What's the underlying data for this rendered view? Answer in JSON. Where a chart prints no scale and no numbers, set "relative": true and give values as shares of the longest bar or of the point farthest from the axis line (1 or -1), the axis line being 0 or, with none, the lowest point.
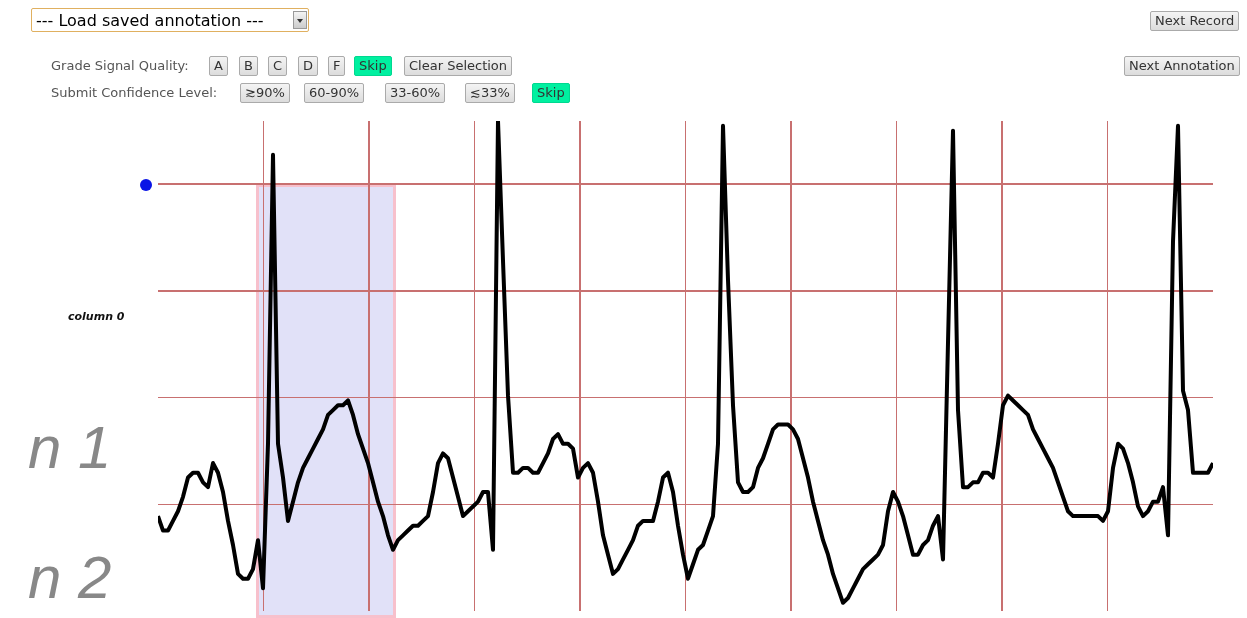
{
  "chart_data": {
    "type": "line",
    "relative": true,
    "grid": true,
    "categories": [
      null,
      null,
      null,
      null,
      null,
      null,
      null,
      null,
      null,
      null,
      null,
      null,
      null,
      null,
      null,
      null,
      null,
      null,
      null,
      null,
      null,
      null,
      null,
      null,
      null,
      null,
      null,
      null,
      null,
      null,
      null,
      null,
      null,
      null,
      null,
      null,
      null,
      null,
      null,
      null,
      null,
      null,
      null,
      null,
      null,
      null,
      null,
      null,
      null,
      null,
      null,
      null,
      null,
      null,
      null,
      null,
      null,
      null,
      null,
      null,
      null,
      null,
      null,
      null,
      null,
      null,
      null,
      null,
      null,
      null,
      null,
      null,
      null,
      null,
      null,
      null,
      null,
      null,
      null,
      null,
      null,
      null,
      null,
      null,
      null,
      null,
      null,
      null,
      null,
      null,
      null,
      null,
      null,
      null,
      null,
      null,
      null,
      null,
      null,
      null,
      null,
      null,
      null,
      null,
      null,
      null,
      null,
      null,
      null,
      null,
      null,
      null,
      null,
      null,
      null,
      null,
      null,
      null,
      null,
      null,
      null,
      null,
      null,
      null,
      null,
      null,
      null,
      null,
      null,
      null,
      null,
      null,
      null,
      null,
      null,
      null,
      null,
      null,
      null,
      null,
      null,
      null,
      null,
      null,
      null,
      null,
      null,
      null,
      null,
      null,
      null,
      null,
      null,
      null,
      null,
      null,
      null,
      null,
      null,
      null,
      null,
      null,
      null,
      null,
      null,
      null,
      null,
      null,
      null,
      null,
      null,
      null,
      null,
      null,
      null,
      null,
      null,
      null,
      null,
      null,
      null,
      null,
      null,
      null,
      null,
      null,
      null,
      null,
      null,
      null,
      null,
      null,
      null,
      null,
      null,
      null,
      null,
      null,
      null,
      null,
      null,
      null,
      null,
      null,
      null,
      null,
      null,
      null,
      null,
      null,
      null,
      null
    ],
    "series": [
      {
        "color": "#000000",
        "values": [
          0.18,
          0.15,
          0.15,
          0.17,
          0.19,
          0.22,
          0.26,
          0.27,
          0.27,
          0.25,
          0.24,
          0.29,
          0.27,
          0.23,
          0.17,
          0.12,
          0.06,
          0.05,
          0.05,
          0.07,
          0.13,
          0.03,
          0.33,
          0.93,
          0.33,
          0.26,
          0.17,
          0.21,
          0.25,
          0.28,
          0.3,
          0.32,
          0.34,
          0.36,
          0.39,
          0.4,
          0.41,
          0.41,
          0.42,
          0.39,
          0.35,
          0.32,
          0.29,
          0.25,
          0.21,
          0.18,
          0.14,
          0.11,
          0.13,
          0.14,
          0.15,
          0.16,
          0.16,
          0.17,
          0.18,
          0.23,
          0.29,
          0.31,
          0.3,
          0.26,
          0.22,
          0.18,
          0.19,
          0.2,
          0.21,
          0.23,
          0.23,
          0.11,
          1.0,
          0.71,
          0.43,
          0.27,
          0.27,
          0.28,
          0.28,
          0.27,
          0.27,
          0.29,
          0.31,
          0.34,
          0.35,
          0.33,
          0.33,
          0.32,
          0.26,
          0.28,
          0.29,
          0.27,
          0.21,
          0.14,
          0.1,
          0.06,
          0.07,
          0.09,
          0.11,
          0.13,
          0.16,
          0.17,
          0.17,
          0.17,
          0.21,
          0.26,
          0.27,
          0.23,
          0.16,
          0.1,
          0.05,
          0.08,
          0.11,
          0.12,
          0.15,
          0.18,
          0.33,
          0.99,
          0.67,
          0.41,
          0.25,
          0.23,
          0.23,
          0.24,
          0.28,
          0.3,
          0.33,
          0.36,
          0.37,
          0.37,
          0.37,
          0.36,
          0.34,
          0.3,
          0.26,
          0.21,
          0.17,
          0.13,
          0.1,
          0.06,
          0.03,
          0.0,
          0.01,
          0.03,
          0.05,
          0.07,
          0.08,
          0.09,
          0.1,
          0.12,
          0.19,
          0.23,
          0.21,
          0.18,
          0.14,
          0.1,
          0.1,
          0.12,
          0.13,
          0.16,
          0.18,
          0.09,
          0.54,
          0.98,
          0.4,
          0.24,
          0.24,
          0.25,
          0.25,
          0.27,
          0.27,
          0.26,
          0.33,
          0.41,
          0.43,
          0.42,
          0.41,
          0.4,
          0.39,
          0.36,
          0.34,
          0.32,
          0.3,
          0.28,
          0.25,
          0.22,
          0.19,
          0.18,
          0.18,
          0.18,
          0.18,
          0.18,
          0.18,
          0.17,
          0.19,
          0.28,
          0.33,
          0.32,
          0.29,
          0.25,
          0.2,
          0.18,
          0.19,
          0.21,
          0.21,
          0.24,
          0.14,
          0.75,
          0.99,
          0.44,
          0.4,
          0.27,
          0.27,
          0.27,
          0.27,
          0.29
        ]
      }
    ],
    "annotations": [
      "--- Load saved annotation ---",
      "Grade Signal Quality:",
      "A",
      "B",
      "C",
      "D",
      "F",
      "Skip",
      "Clear Selection",
      "Submit Confidence Level:",
      "≳90%",
      "60-90%",
      "33-60%",
      "≲33%",
      "Skip",
      "Next Record",
      "Next Annotation",
      "column 0",
      "n 1",
      "n 2"
    ]
  }
}
